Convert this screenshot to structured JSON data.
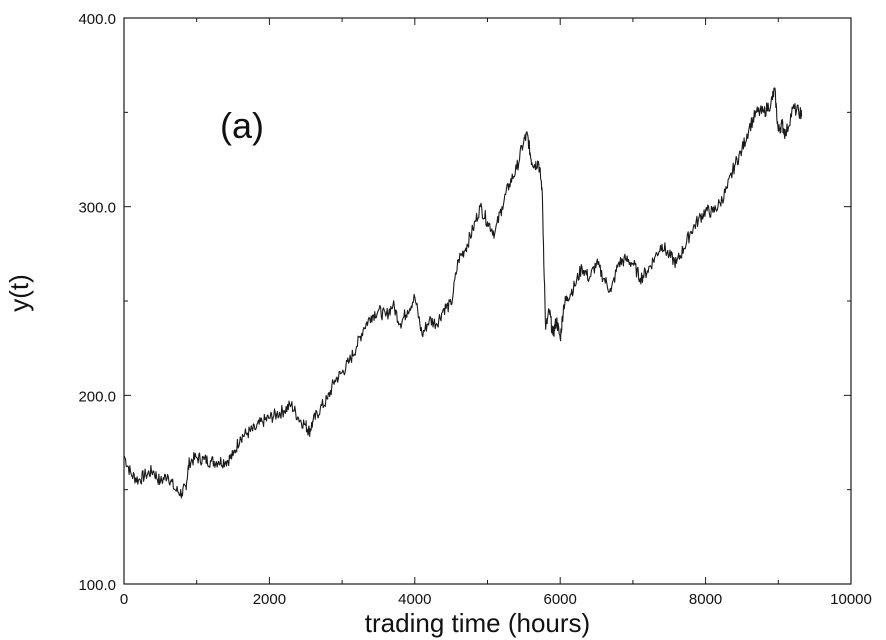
{
  "chart_data": {
    "type": "line",
    "panel_label": "(a)",
    "xlabel": "trading time (hours)",
    "ylabel": "y(t)",
    "xlim": [
      0,
      10000
    ],
    "ylim": [
      100,
      400
    ],
    "x_ticks": [
      0,
      2000,
      4000,
      6000,
      8000,
      10000
    ],
    "x_tick_labels": [
      "0",
      "2000",
      "4000",
      "6000",
      "8000",
      "10000"
    ],
    "y_ticks": [
      100,
      200,
      300,
      400
    ],
    "y_tick_labels": [
      "100.0",
      "200.0",
      "300.0",
      "400.0"
    ],
    "grid": false,
    "colors": {
      "line": "#1a1a1a",
      "axes": "#1a1a1a",
      "background": "#ffffff"
    },
    "series": [
      {
        "x": [
          0,
          100,
          200,
          300,
          400,
          500,
          600,
          700,
          800,
          850,
          900,
          1000,
          1100,
          1200,
          1300,
          1400,
          1500,
          1600,
          1700,
          1800,
          1900,
          2000,
          2100,
          2200,
          2300,
          2400,
          2500,
          2550,
          2600,
          2700,
          2800,
          2900,
          3000,
          3100,
          3200,
          3300,
          3400,
          3500,
          3600,
          3700,
          3800,
          3900,
          4000,
          4100,
          4200,
          4300,
          4400,
          4500,
          4600,
          4700,
          4800,
          4900,
          5000,
          5100,
          5200,
          5300,
          5400,
          5500,
          5550,
          5600,
          5650,
          5700,
          5750,
          5800,
          5850,
          5900,
          5950,
          6000,
          6050,
          6100,
          6200,
          6300,
          6400,
          6500,
          6600,
          6700,
          6800,
          6900,
          7000,
          7100,
          7200,
          7300,
          7400,
          7500,
          7600,
          7700,
          7800,
          7900,
          8000,
          8100,
          8200,
          8300,
          8400,
          8500,
          8600,
          8700,
          8800,
          8900,
          8950,
          9000,
          9050,
          9100,
          9200,
          9300,
          9320
        ],
        "y": [
          168,
          158,
          155,
          158,
          160,
          154,
          158,
          150,
          148,
          152,
          165,
          167,
          166,
          165,
          165,
          165,
          168,
          178,
          180,
          182,
          186,
          188,
          190,
          192,
          195,
          188,
          184,
          181,
          186,
          193,
          198,
          208,
          212,
          218,
          226,
          236,
          242,
          245,
          242,
          248,
          238,
          245,
          252,
          232,
          240,
          238,
          246,
          248,
          272,
          278,
          288,
          300,
          292,
          286,
          300,
          312,
          320,
          335,
          338,
          325,
          322,
          324,
          310,
          235,
          245,
          232,
          240,
          230,
          248,
          252,
          258,
          268,
          262,
          270,
          262,
          255,
          270,
          272,
          270,
          262,
          266,
          273,
          280,
          274,
          270,
          278,
          287,
          293,
          298,
          297,
          302,
          310,
          322,
          330,
          342,
          350,
          350,
          355,
          362,
          340,
          344,
          338,
          352,
          350,
          348
        ]
      }
    ]
  }
}
